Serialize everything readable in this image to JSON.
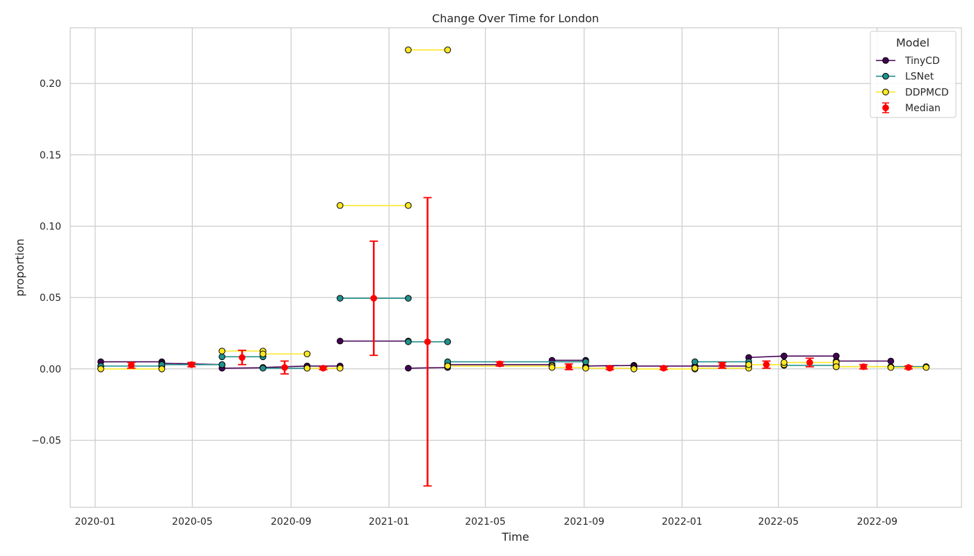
{
  "chart_data": {
    "type": "line",
    "title": "Change Over Time for London",
    "xlabel": "Time",
    "ylabel": "proportion",
    "x_type": "date",
    "xlim": [
      "2019-12-01",
      "2022-12-15"
    ],
    "ylim": [
      -0.097,
      0.239
    ],
    "x_ticks": [
      "2020-01",
      "2020-05",
      "2020-09",
      "2021-01",
      "2021-05",
      "2021-09",
      "2022-01",
      "2022-05",
      "2022-09"
    ],
    "y_ticks": [
      -0.05,
      0.0,
      0.05,
      0.1,
      0.15,
      0.2
    ],
    "y_tick_labels": [
      "−0.05",
      "0.00",
      "0.05",
      "0.10",
      "0.15",
      "0.20"
    ],
    "grid": true,
    "legend": {
      "title": "Model",
      "position": "top-right"
    },
    "series": [
      {
        "name": "TinyCD",
        "color": "#440154",
        "segments": [
          [
            [
              "2020-01-08",
              0.005
            ],
            [
              "2020-03-24",
              0.005
            ]
          ],
          [
            [
              "2020-03-24",
              0.004
            ],
            [
              "2020-06-07",
              0.003
            ]
          ],
          [
            [
              "2020-06-07",
              0.0005
            ],
            [
              "2020-07-28",
              0.0008
            ]
          ],
          [
            [
              "2020-07-28",
              0.001
            ],
            [
              "2020-09-21",
              0.002
            ]
          ],
          [
            [
              "2020-09-21",
              0.002
            ],
            [
              "2020-11-01",
              0.002
            ]
          ],
          [
            [
              "2020-11-01",
              0.0195
            ],
            [
              "2021-01-25",
              0.0195
            ]
          ],
          [
            [
              "2021-01-25",
              0.0005
            ],
            [
              "2021-03-15",
              0.001
            ]
          ],
          [
            [
              "2021-03-15",
              0.003
            ],
            [
              "2021-07-23",
              0.003
            ]
          ],
          [
            [
              "2021-07-23",
              0.006
            ],
            [
              "2021-09-03",
              0.006
            ]
          ],
          [
            [
              "2021-09-03",
              0.002
            ],
            [
              "2021-11-02",
              0.0025
            ]
          ],
          [
            [
              "2021-11-02",
              0.002
            ],
            [
              "2022-01-17",
              0.002
            ]
          ],
          [
            [
              "2022-01-17",
              0.002
            ],
            [
              "2022-03-25",
              0.002
            ]
          ],
          [
            [
              "2022-03-25",
              0.008
            ],
            [
              "2022-05-08",
              0.009
            ]
          ],
          [
            [
              "2022-05-08",
              0.009
            ],
            [
              "2022-07-12",
              0.009
            ]
          ],
          [
            [
              "2022-07-12",
              0.0055
            ],
            [
              "2022-09-18",
              0.0055
            ]
          ],
          [
            [
              "2022-09-18",
              0.0015
            ],
            [
              "2022-11-01",
              0.0015
            ]
          ]
        ]
      },
      {
        "name": "LSNet",
        "color": "#21918c",
        "segments": [
          [
            [
              "2020-01-08",
              0.002
            ],
            [
              "2020-03-24",
              0.002
            ]
          ],
          [
            [
              "2020-03-24",
              0.003
            ],
            [
              "2020-06-07",
              0.003
            ]
          ],
          [
            [
              "2020-06-07",
              0.0085
            ],
            [
              "2020-07-28",
              0.0085
            ]
          ],
          [
            [
              "2020-07-28",
              0.0005
            ],
            [
              "2020-09-21",
              0.0005
            ]
          ],
          [
            [
              "2020-11-01",
              0.0495
            ],
            [
              "2021-01-25",
              0.0495
            ]
          ],
          [
            [
              "2021-01-25",
              0.019
            ],
            [
              "2021-03-15",
              0.019
            ]
          ],
          [
            [
              "2021-03-15",
              0.005
            ],
            [
              "2021-09-03",
              0.005
            ]
          ],
          [
            [
              "2022-01-17",
              0.005
            ],
            [
              "2022-03-25",
              0.005
            ]
          ],
          [
            [
              "2022-05-08",
              0.0025
            ],
            [
              "2022-07-12",
              0.0025
            ]
          ],
          [
            [
              "2022-07-12",
              0.0015
            ],
            [
              "2022-11-01",
              0.0015
            ]
          ]
        ]
      },
      {
        "name": "DDPMCD",
        "color": "#fde725",
        "segments": [
          [
            [
              "2020-01-08",
              0.0
            ],
            [
              "2020-03-24",
              0.0
            ]
          ],
          [
            [
              "2020-06-07",
              0.0125
            ],
            [
              "2020-07-28",
              0.0125
            ]
          ],
          [
            [
              "2020-07-28",
              0.0105
            ],
            [
              "2020-09-21",
              0.0105
            ]
          ],
          [
            [
              "2020-09-21",
              0.0005
            ],
            [
              "2020-11-01",
              0.0005
            ]
          ],
          [
            [
              "2020-11-01",
              0.1145
            ],
            [
              "2021-01-25",
              0.1145
            ]
          ],
          [
            [
              "2021-01-25",
              0.2235
            ],
            [
              "2021-03-15",
              0.2235
            ]
          ],
          [
            [
              "2021-03-15",
              0.002
            ],
            [
              "2021-07-23",
              0.002
            ]
          ],
          [
            [
              "2021-07-23",
              0.001
            ],
            [
              "2021-09-03",
              0.001
            ]
          ],
          [
            [
              "2021-09-03",
              0.0005
            ],
            [
              "2021-11-02",
              0.0005
            ]
          ],
          [
            [
              "2021-11-02",
              0.0
            ],
            [
              "2022-01-17",
              0.0
            ]
          ],
          [
            [
              "2022-01-17",
              0.0005
            ],
            [
              "2022-03-25",
              0.0005
            ]
          ],
          [
            [
              "2022-03-25",
              0.003
            ],
            [
              "2022-05-08",
              0.003
            ]
          ],
          [
            [
              "2022-05-08",
              0.0045
            ],
            [
              "2022-07-12",
              0.0045
            ]
          ],
          [
            [
              "2022-07-12",
              0.0015
            ],
            [
              "2022-09-18",
              0.0015
            ]
          ],
          [
            [
              "2022-09-18",
              0.001
            ],
            [
              "2022-11-01",
              0.001
            ]
          ]
        ]
      }
    ],
    "median": {
      "name": "Median",
      "color": "#ff0000",
      "points": [
        {
          "x": "2020-02-15",
          "y": 0.0025,
          "lo": 0.0005,
          "hi": 0.0045
        },
        {
          "x": "2020-04-30",
          "y": 0.003,
          "lo": 0.0015,
          "hi": 0.0045
        },
        {
          "x": "2020-07-02",
          "y": 0.008,
          "lo": 0.003,
          "hi": 0.013
        },
        {
          "x": "2020-08-24",
          "y": 0.001,
          "lo": -0.0035,
          "hi": 0.0055
        },
        {
          "x": "2020-10-11",
          "y": 0.0005,
          "lo": -0.0005,
          "hi": 0.0015
        },
        {
          "x": "2020-12-13",
          "y": 0.0495,
          "lo": 0.0095,
          "hi": 0.0895
        },
        {
          "x": "2021-02-18",
          "y": 0.019,
          "lo": -0.082,
          "hi": 0.12
        },
        {
          "x": "2021-05-19",
          "y": 0.0035,
          "lo": 0.002,
          "hi": 0.005
        },
        {
          "x": "2021-08-13",
          "y": 0.0015,
          "lo": -0.0005,
          "hi": 0.0035
        },
        {
          "x": "2021-10-03",
          "y": 0.0005,
          "lo": -0.0005,
          "hi": 0.0015
        },
        {
          "x": "2021-12-09",
          "y": 0.0005,
          "lo": -0.0005,
          "hi": 0.0015
        },
        {
          "x": "2022-02-20",
          "y": 0.0025,
          "lo": 0.0005,
          "hi": 0.0045
        },
        {
          "x": "2022-04-16",
          "y": 0.003,
          "lo": 0.0005,
          "hi": 0.0055
        },
        {
          "x": "2022-06-09",
          "y": 0.0045,
          "lo": 0.0015,
          "hi": 0.0075
        },
        {
          "x": "2022-08-15",
          "y": 0.0015,
          "lo": 0.0,
          "hi": 0.003
        },
        {
          "x": "2022-10-10",
          "y": 0.001,
          "lo": 0.0,
          "hi": 0.002
        }
      ]
    }
  }
}
